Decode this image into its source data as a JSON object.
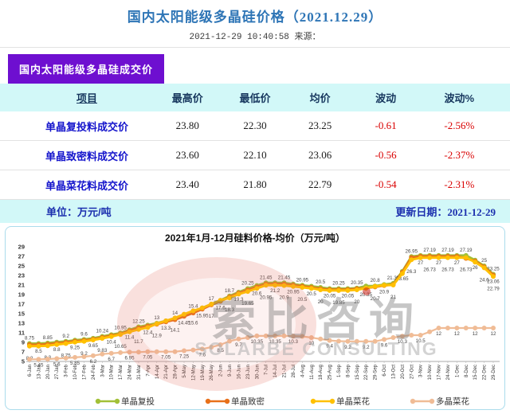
{
  "header": {
    "title": "国内太阳能级多晶硅价格（2021.12.29）",
    "subtitle": "2021-12-29 10:40:58  来源："
  },
  "banner": {
    "label": "国内太阳能级多晶硅成交价"
  },
  "table": {
    "columns": [
      "项目",
      "最高价",
      "最低价",
      "均价",
      "波动",
      "波动%"
    ],
    "rows": [
      {
        "name": "单晶复投料成交价",
        "high": "23.80",
        "low": "22.30",
        "avg": "23.25",
        "change": "-0.61",
        "change_pct": "-2.56%"
      },
      {
        "name": "单晶致密料成交价",
        "high": "23.60",
        "low": "22.10",
        "avg": "23.06",
        "change": "-0.56",
        "change_pct": "-2.37%"
      },
      {
        "name": "单晶菜花料成交价",
        "high": "23.40",
        "low": "21.80",
        "avg": "22.79",
        "change": "-0.54",
        "change_pct": "-2.31%"
      }
    ],
    "unit_label": "单位：万元/吨",
    "update_label": "更新日期：2021-12-29"
  },
  "chart_data": {
    "type": "line",
    "title": "2021年1月-12月硅料价格-均价（万元/吨）",
    "ylim": [
      5,
      29
    ],
    "yticks": [
      5,
      7,
      9,
      11,
      13,
      15,
      17,
      19,
      21,
      23,
      25,
      27,
      29
    ],
    "grid": false,
    "legend_position": "bottom",
    "x": [
      "6-Jan",
      "13-Jan",
      "20-Jan",
      "27-Jan",
      "3-Feb",
      "10-Feb",
      "17-Feb",
      "24-Feb",
      "3-Mar",
      "10-Mar",
      "17-Mar",
      "24-Mar",
      "31-Mar",
      "7-Apr",
      "14-Apr",
      "21-Apr",
      "28-Apr",
      "5-May",
      "12-May",
      "19-May",
      "26-May",
      "2-Jun",
      "9-Jun",
      "16-Jun",
      "23-Jun",
      "30-Jun",
      "7-Jul",
      "14-Jul",
      "21-Jul",
      "28-Jul",
      "4-Aug",
      "11-Aug",
      "18-Aug",
      "25-Aug",
      "1-Sep",
      "8-Sep",
      "15-Sep",
      "22-Sep",
      "29-Sep",
      "6-Oct",
      "13-Oct",
      "20-Oct",
      "27-Oct",
      "3-Nov",
      "10-Nov",
      "17-Nov",
      "24-Nov",
      "1-Dec",
      "8-Dec",
      "15-Dec",
      "22-Dec",
      "29-Dec"
    ],
    "series": [
      {
        "name": "单晶复投",
        "color": "#A2C037",
        "values": [
          8.75,
          8.75,
          8.85,
          9.05,
          9.2,
          9.45,
          9.6,
          9.85,
          10.24,
          10.6,
          10.95,
          11.6,
          12.25,
          12.6,
          13,
          13.5,
          14,
          14.7,
          15.4,
          16.2,
          17,
          17.8,
          18.7,
          19.5,
          20.25,
          20.9,
          21.45,
          21.45,
          21.45,
          21.2,
          20.95,
          20.75,
          20.5,
          20.25,
          20.25,
          20.25,
          20.35,
          20.8,
          20.8,
          21.1,
          21.35,
          23.85,
          26.95,
          27.19,
          27.19,
          27.19,
          27.19,
          27.19,
          27.19,
          26.2,
          25,
          23.25
        ]
      },
      {
        "name": "单晶致密",
        "color": "#E8701A",
        "values": [
          8.5,
          8.5,
          8.6,
          8.8,
          9,
          9.25,
          9.4,
          9.65,
          10.02,
          10.4,
          10.75,
          11.4,
          12,
          12.4,
          12.8,
          13.3,
          13.75,
          14.45,
          15.15,
          15.95,
          16.85,
          17.6,
          18.5,
          19.3,
          19.95,
          20.6,
          21.2,
          21.2,
          21.2,
          20.95,
          20.75,
          20.5,
          20.2,
          20.05,
          20.05,
          20.05,
          20.2,
          20.35,
          20.6,
          20.9,
          21.1,
          23.65,
          26.75,
          27,
          27,
          27,
          27,
          27,
          26.58,
          26,
          24.8,
          23.06
        ]
      },
      {
        "name": "单晶菜花",
        "color": "#FFC000",
        "values": [
          8.2,
          8.2,
          8.3,
          8.55,
          8.75,
          9.05,
          9.2,
          9.5,
          9.83,
          10.2,
          10.65,
          11.2,
          11.7,
          12.1,
          12.9,
          13.5,
          14.1,
          14.9,
          15.6,
          16.2,
          17,
          17.8,
          18.3,
          19.1,
          19.65,
          20.3,
          20.95,
          20.95,
          20.9,
          20.7,
          20.5,
          20.3,
          20,
          19.85,
          19.85,
          19.85,
          20,
          20.35,
          20.7,
          20.95,
          21,
          23.4,
          26.3,
          26.7,
          26.73,
          26.73,
          26.73,
          26.73,
          26.73,
          25.8,
          24.6,
          22.79
        ]
      },
      {
        "name": "多晶菜花",
        "color": "#F0BC96",
        "values": [
          5.45,
          5.45,
          5.5,
          5.6,
          5.7,
          5.85,
          6,
          6.2,
          6.55,
          6.7,
          6.85,
          6.95,
          6.95,
          7.05,
          7.05,
          7.05,
          7.05,
          7.25,
          7.4,
          7.6,
          8,
          8.5,
          9.25,
          9.7,
          10,
          10.35,
          10.35,
          10.35,
          10.35,
          10.3,
          10.25,
          10,
          9.7,
          9.4,
          9.25,
          9.2,
          9.2,
          9.2,
          9.2,
          9.6,
          10,
          10.3,
          10.5,
          10.5,
          11.2,
          12,
          12,
          12,
          12,
          12,
          12,
          12
        ]
      }
    ],
    "watermark": {
      "text": "索比咨询",
      "subtext": "SOLARBE CONSULTING"
    }
  }
}
